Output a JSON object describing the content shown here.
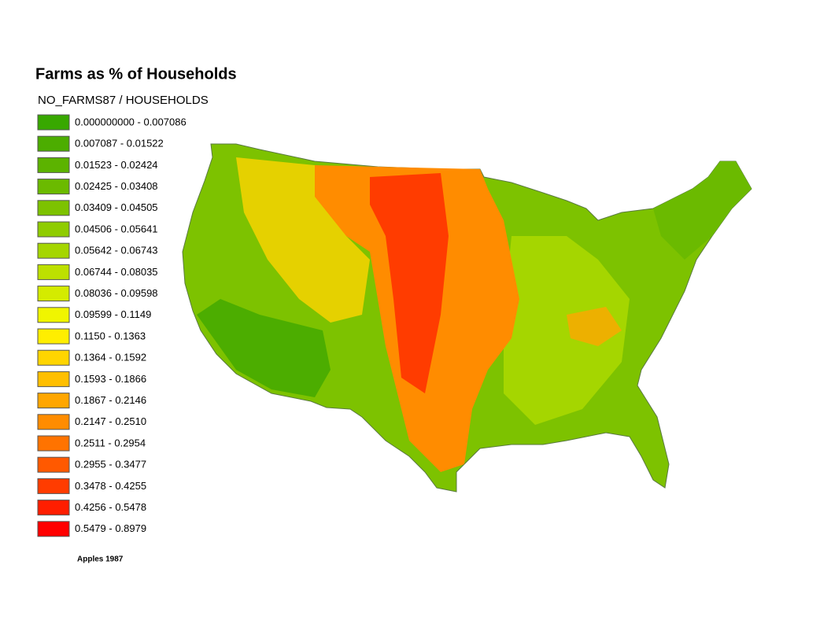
{
  "header": {
    "title": "Farms as % of Households",
    "field": "NO_FARMS87 / HOUSEHOLDS"
  },
  "legend": {
    "items": [
      {
        "label": "0.000000000 - 0.007086",
        "color": "#38a800"
      },
      {
        "label": "0.007087 - 0.01522",
        "color": "#4cad00"
      },
      {
        "label": "0.01523 - 0.02424",
        "color": "#5cb300"
      },
      {
        "label": "0.02425 - 0.03408",
        "color": "#6bba00"
      },
      {
        "label": "0.03409 - 0.04505",
        "color": "#7dc200"
      },
      {
        "label": "0.04506 - 0.05641",
        "color": "#8fcc00"
      },
      {
        "label": "0.05642 - 0.06743",
        "color": "#a5d600"
      },
      {
        "label": "0.06744 - 0.08035",
        "color": "#bde000"
      },
      {
        "label": "0.08036 - 0.09598",
        "color": "#d4eb00"
      },
      {
        "label": "0.09599 - 0.1149",
        "color": "#f0f500"
      },
      {
        "label": "0.1150 - 0.1363",
        "color": "#ffee00"
      },
      {
        "label": "0.1364 - 0.1592",
        "color": "#ffd500"
      },
      {
        "label": "0.1593 - 0.1866",
        "color": "#ffbf00"
      },
      {
        "label": "0.1867 - 0.2146",
        "color": "#ffa600"
      },
      {
        "label": "0.2147 - 0.2510",
        "color": "#ff8c00"
      },
      {
        "label": "0.2511 - 0.2954",
        "color": "#ff7300"
      },
      {
        "label": "0.2955 - 0.3477",
        "color": "#ff5900"
      },
      {
        "label": "0.3478 - 0.4255",
        "color": "#ff3c00"
      },
      {
        "label": "0.4256 - 0.5478",
        "color": "#ff1e00"
      },
      {
        "label": "0.5479 - 0.8979",
        "color": "#ff0000"
      }
    ]
  },
  "footnote": "Apples 1987"
}
